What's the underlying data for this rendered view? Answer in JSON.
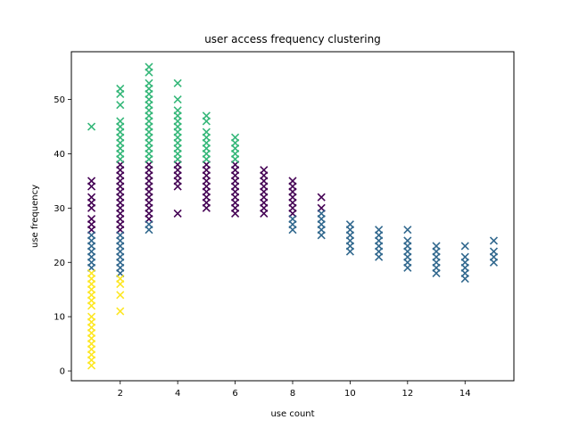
{
  "chart_data": {
    "type": "scatter",
    "marker": "x",
    "title": "user access frequency clustering",
    "xlabel": "use count",
    "ylabel": "use frequency",
    "xlim": [
      0.3,
      15.7
    ],
    "ylim": [
      -1.8,
      58.8
    ],
    "xticks": [
      2,
      4,
      6,
      8,
      10,
      12,
      14
    ],
    "yticks": [
      0,
      10,
      20,
      30,
      40,
      50
    ],
    "grid": false,
    "legend": "none",
    "clusters": [
      {
        "color": "#440154",
        "points": [
          [
            1,
            26
          ],
          [
            1,
            27
          ],
          [
            1,
            28
          ],
          [
            1,
            30
          ],
          [
            1,
            31
          ],
          [
            1,
            32
          ],
          [
            1,
            34
          ],
          [
            1,
            35
          ],
          [
            2,
            26
          ],
          [
            2,
            27
          ],
          [
            2,
            28
          ],
          [
            2,
            29
          ],
          [
            2,
            30
          ],
          [
            2,
            31
          ],
          [
            2,
            32
          ],
          [
            2,
            33
          ],
          [
            2,
            34
          ],
          [
            2,
            35
          ],
          [
            2,
            36
          ],
          [
            2,
            37
          ],
          [
            2,
            38
          ],
          [
            3,
            28
          ],
          [
            3,
            29
          ],
          [
            3,
            30
          ],
          [
            3,
            31
          ],
          [
            3,
            32
          ],
          [
            3,
            33
          ],
          [
            3,
            34
          ],
          [
            3,
            35
          ],
          [
            3,
            36
          ],
          [
            3,
            37
          ],
          [
            3,
            38
          ],
          [
            4,
            29
          ],
          [
            4,
            34
          ],
          [
            4,
            35
          ],
          [
            4,
            36
          ],
          [
            4,
            37
          ],
          [
            4,
            38
          ],
          [
            5,
            30
          ],
          [
            5,
            31
          ],
          [
            5,
            32
          ],
          [
            5,
            33
          ],
          [
            5,
            34
          ],
          [
            5,
            35
          ],
          [
            5,
            36
          ],
          [
            5,
            37
          ],
          [
            5,
            38
          ],
          [
            6,
            29
          ],
          [
            6,
            30
          ],
          [
            6,
            31
          ],
          [
            6,
            32
          ],
          [
            6,
            33
          ],
          [
            6,
            34
          ],
          [
            6,
            35
          ],
          [
            6,
            36
          ],
          [
            6,
            37
          ],
          [
            6,
            38
          ],
          [
            7,
            29
          ],
          [
            7,
            30
          ],
          [
            7,
            31
          ],
          [
            7,
            32
          ],
          [
            7,
            33
          ],
          [
            7,
            34
          ],
          [
            7,
            35
          ],
          [
            7,
            36
          ],
          [
            7,
            37
          ],
          [
            8,
            29
          ],
          [
            8,
            30
          ],
          [
            8,
            31
          ],
          [
            8,
            32
          ],
          [
            8,
            33
          ],
          [
            8,
            34
          ],
          [
            8,
            35
          ],
          [
            9,
            30
          ],
          [
            9,
            32
          ]
        ]
      },
      {
        "color": "#31688e",
        "points": [
          [
            1,
            19
          ],
          [
            1,
            20
          ],
          [
            1,
            21
          ],
          [
            1,
            22
          ],
          [
            1,
            23
          ],
          [
            1,
            24
          ],
          [
            1,
            25
          ],
          [
            2,
            18
          ],
          [
            2,
            19
          ],
          [
            2,
            20
          ],
          [
            2,
            21
          ],
          [
            2,
            22
          ],
          [
            2,
            23
          ],
          [
            2,
            24
          ],
          [
            2,
            25
          ],
          [
            3,
            26
          ],
          [
            3,
            27
          ],
          [
            8,
            26
          ],
          [
            8,
            27
          ],
          [
            8,
            28
          ],
          [
            9,
            25
          ],
          [
            9,
            26
          ],
          [
            9,
            27
          ],
          [
            9,
            28
          ],
          [
            9,
            29
          ],
          [
            10,
            22
          ],
          [
            10,
            23
          ],
          [
            10,
            24
          ],
          [
            10,
            25
          ],
          [
            10,
            26
          ],
          [
            10,
            27
          ],
          [
            11,
            21
          ],
          [
            11,
            22
          ],
          [
            11,
            23
          ],
          [
            11,
            24
          ],
          [
            11,
            25
          ],
          [
            11,
            26
          ],
          [
            12,
            19
          ],
          [
            12,
            20
          ],
          [
            12,
            21
          ],
          [
            12,
            22
          ],
          [
            12,
            23
          ],
          [
            12,
            24
          ],
          [
            12,
            26
          ],
          [
            13,
            18
          ],
          [
            13,
            19
          ],
          [
            13,
            20
          ],
          [
            13,
            21
          ],
          [
            13,
            22
          ],
          [
            13,
            23
          ],
          [
            14,
            17
          ],
          [
            14,
            18
          ],
          [
            14,
            19
          ],
          [
            14,
            20
          ],
          [
            14,
            21
          ],
          [
            14,
            23
          ],
          [
            15,
            20
          ],
          [
            15,
            21
          ],
          [
            15,
            22
          ],
          [
            15,
            24
          ]
        ]
      },
      {
        "color": "#35b779",
        "points": [
          [
            1,
            45
          ],
          [
            2,
            39
          ],
          [
            2,
            40
          ],
          [
            2,
            41
          ],
          [
            2,
            42
          ],
          [
            2,
            43
          ],
          [
            2,
            44
          ],
          [
            2,
            45
          ],
          [
            2,
            46
          ],
          [
            2,
            49
          ],
          [
            2,
            51
          ],
          [
            2,
            52
          ],
          [
            3,
            39
          ],
          [
            3,
            40
          ],
          [
            3,
            41
          ],
          [
            3,
            42
          ],
          [
            3,
            43
          ],
          [
            3,
            44
          ],
          [
            3,
            45
          ],
          [
            3,
            46
          ],
          [
            3,
            47
          ],
          [
            3,
            48
          ],
          [
            3,
            49
          ],
          [
            3,
            50
          ],
          [
            3,
            51
          ],
          [
            3,
            52
          ],
          [
            3,
            53
          ],
          [
            3,
            55
          ],
          [
            3,
            56
          ],
          [
            4,
            39
          ],
          [
            4,
            40
          ],
          [
            4,
            41
          ],
          [
            4,
            42
          ],
          [
            4,
            43
          ],
          [
            4,
            44
          ],
          [
            4,
            45
          ],
          [
            4,
            46
          ],
          [
            4,
            47
          ],
          [
            4,
            48
          ],
          [
            4,
            50
          ],
          [
            4,
            53
          ],
          [
            5,
            39
          ],
          [
            5,
            40
          ],
          [
            5,
            41
          ],
          [
            5,
            42
          ],
          [
            5,
            43
          ],
          [
            5,
            44
          ],
          [
            5,
            46
          ],
          [
            5,
            47
          ],
          [
            6,
            39
          ],
          [
            6,
            40
          ],
          [
            6,
            41
          ],
          [
            6,
            42
          ],
          [
            6,
            43
          ]
        ]
      },
      {
        "color": "#fde725",
        "points": [
          [
            1,
            1
          ],
          [
            1,
            2
          ],
          [
            1,
            3
          ],
          [
            1,
            4
          ],
          [
            1,
            5
          ],
          [
            1,
            6
          ],
          [
            1,
            7
          ],
          [
            1,
            8
          ],
          [
            1,
            9
          ],
          [
            1,
            10
          ],
          [
            1,
            12
          ],
          [
            1,
            13
          ],
          [
            1,
            14
          ],
          [
            1,
            15
          ],
          [
            1,
            16
          ],
          [
            1,
            17
          ],
          [
            1,
            18
          ],
          [
            2,
            11
          ],
          [
            2,
            14
          ],
          [
            2,
            16
          ],
          [
            2,
            17
          ]
        ]
      }
    ]
  }
}
